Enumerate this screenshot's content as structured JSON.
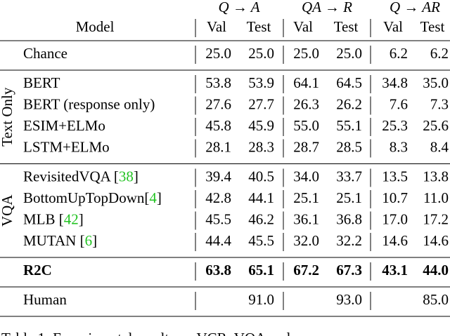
{
  "table": {
    "groups": [
      "Q → A",
      "QA → R",
      "Q → AR"
    ],
    "model_header": "Model",
    "columns": [
      "Val",
      "Test",
      "Val",
      "Test",
      "Val",
      "Test"
    ],
    "sections": [
      {
        "rows": [
          {
            "model": [
              {
                "text": "Chance"
              }
            ],
            "values": [
              "25.0",
              "25.0",
              "25.0",
              "25.0",
              "6.2",
              "6.2"
            ]
          }
        ]
      },
      {
        "label": "Text Only",
        "rows": [
          {
            "model": [
              {
                "text": "BERT"
              }
            ],
            "values": [
              "53.8",
              "53.9",
              "64.1",
              "64.5",
              "34.8",
              "35.0"
            ]
          },
          {
            "model": [
              {
                "text": "BERT (response only)"
              }
            ],
            "values": [
              "27.6",
              "27.7",
              "26.3",
              "26.2",
              "7.6",
              "7.3"
            ]
          },
          {
            "model": [
              {
                "text": "ESIM+ELMo"
              }
            ],
            "values": [
              "45.8",
              "45.9",
              "55.0",
              "55.1",
              "25.3",
              "25.6"
            ]
          },
          {
            "model": [
              {
                "text": "LSTM+ELMo"
              }
            ],
            "values": [
              "28.1",
              "28.3",
              "28.7",
              "28.5",
              "8.3",
              "8.4"
            ]
          }
        ]
      },
      {
        "label": "VQA",
        "rows": [
          {
            "model": [
              {
                "text": "RevisitedVQA ["
              },
              {
                "text": "38",
                "link": true
              },
              {
                "text": "]"
              }
            ],
            "values": [
              "39.4",
              "40.5",
              "34.0",
              "33.7",
              "13.5",
              "13.8"
            ]
          },
          {
            "model": [
              {
                "text": "BottomUpTopDown["
              },
              {
                "text": "4",
                "link": true
              },
              {
                "text": "]"
              }
            ],
            "values": [
              "42.8",
              "44.1",
              "25.1",
              "25.1",
              "10.7",
              "11.0"
            ]
          },
          {
            "model": [
              {
                "text": "MLB ["
              },
              {
                "text": "42",
                "link": true
              },
              {
                "text": "]"
              }
            ],
            "values": [
              "45.5",
              "46.2",
              "36.1",
              "36.8",
              "17.0",
              "17.2"
            ]
          },
          {
            "model": [
              {
                "text": "MUTAN ["
              },
              {
                "text": "6",
                "link": true
              },
              {
                "text": "]"
              }
            ],
            "values": [
              "44.4",
              "45.5",
              "32.0",
              "32.2",
              "14.6",
              "14.6"
            ]
          }
        ]
      },
      {
        "rows": [
          {
            "model": [
              {
                "text": "R2C"
              }
            ],
            "values": [
              "63.8",
              "65.1",
              "67.2",
              "67.3",
              "43.1",
              "44.0"
            ],
            "bold": true
          }
        ]
      },
      {
        "rows": [
          {
            "model": [
              {
                "text": "Human"
              }
            ],
            "values": [
              null,
              "91.0",
              null,
              "93.0",
              null,
              "85.0"
            ]
          }
        ]
      }
    ],
    "caption": "Table 1: Experimental results on VCR. VQA and"
  }
}
